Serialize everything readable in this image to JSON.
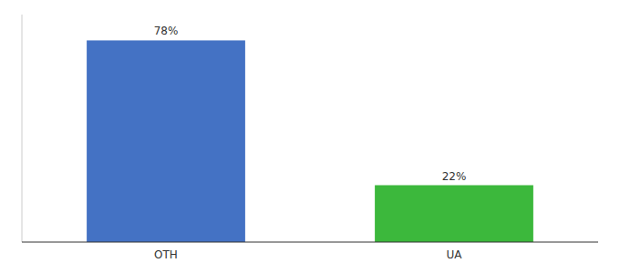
{
  "chart_data": {
    "type": "bar",
    "categories": [
      "OTH",
      "UA"
    ],
    "values": [
      78,
      22
    ],
    "value_labels": [
      "78%",
      "22%"
    ],
    "colors": [
      "#4472c4",
      "#3cb83c"
    ],
    "ylim": [
      0,
      88
    ],
    "data_labels": true,
    "tick_labels": "x"
  }
}
